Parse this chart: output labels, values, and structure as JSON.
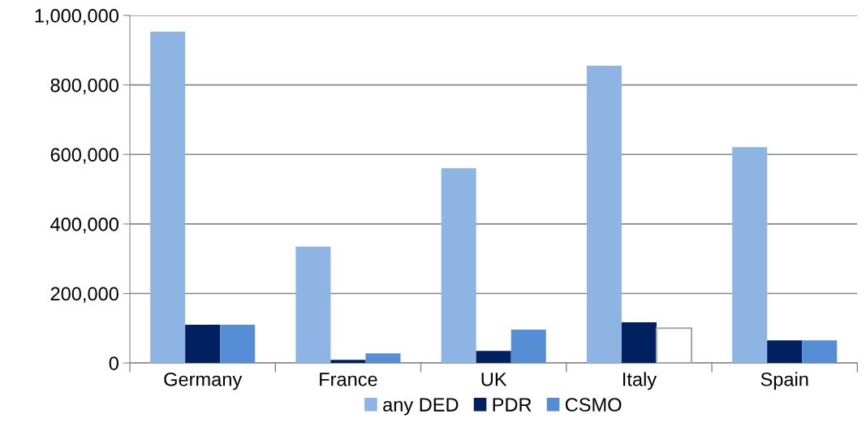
{
  "chart_data": {
    "type": "bar",
    "categories": [
      "Germany",
      "France",
      "UK",
      "Italy",
      "Spain"
    ],
    "series": [
      {
        "name": "any DED",
        "color": "#8db4e2",
        "values": [
          953000,
          335000,
          560000,
          855000,
          621000
        ]
      },
      {
        "name": "PDR",
        "color": "#002060",
        "values": [
          110000,
          9000,
          35000,
          117000,
          65000
        ]
      },
      {
        "name": "CSMO",
        "color": "#558ed5",
        "colors": [
          "#558ed5",
          "#558ed5",
          "#558ed5",
          "#ffffff",
          "#558ed5"
        ],
        "values": [
          110000,
          28000,
          96000,
          100000,
          65000
        ]
      }
    ],
    "ylim": [
      0,
      1000000
    ],
    "yticks": [
      {
        "value": 0,
        "label": "0"
      },
      {
        "value": 200000,
        "label": "200,000"
      },
      {
        "value": 400000,
        "label": "400,000"
      },
      {
        "value": 600000,
        "label": "600,000"
      },
      {
        "value": 800000,
        "label": "800,000"
      },
      {
        "value": 1000000,
        "label": "1,000,000"
      }
    ],
    "grid": "y",
    "legend": "bottom"
  }
}
